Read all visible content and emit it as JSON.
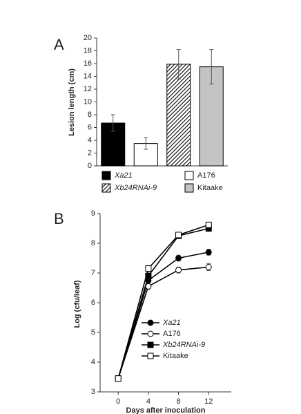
{
  "chart_data": [
    {
      "type": "bar",
      "panel": "A",
      "ylabel": "Lesion length (cm)",
      "categories": [
        "Xa21",
        "A176",
        "Xb24RNAi-9",
        "Kitaake"
      ],
      "values": [
        6.7,
        3.5,
        15.9,
        15.5
      ],
      "errors": [
        1.3,
        0.9,
        2.3,
        2.7
      ],
      "colors": [
        "#000000",
        "#ffffff",
        "#ffffff",
        "#c4c4c4"
      ],
      "hatched": [
        false,
        false,
        true,
        false
      ],
      "italic": [
        true,
        false,
        true,
        false
      ],
      "ylim": [
        0,
        20
      ],
      "yticks": [
        0,
        2,
        4,
        6,
        8,
        10,
        12,
        14,
        16,
        18,
        20
      ]
    },
    {
      "type": "line",
      "panel": "B",
      "xlabel": "Days after inoculation",
      "ylabel": "Log (cfu/leaf)",
      "x": [
        0,
        4,
        8,
        12
      ],
      "series": [
        {
          "name": "Xa21",
          "marker": "circle",
          "filled": true,
          "italic": true,
          "color": "#000000",
          "values": [
            3.45,
            6.75,
            7.5,
            7.7
          ],
          "errors": [
            0.05,
            0.1,
            0.1,
            0.1
          ]
        },
        {
          "name": "A176",
          "marker": "circle",
          "filled": false,
          "italic": false,
          "color": "#000000",
          "values": [
            3.45,
            6.55,
            7.1,
            7.2
          ],
          "errors": [
            0.05,
            0.1,
            0.1,
            0.12
          ]
        },
        {
          "name": "Xb24RNAi-9",
          "marker": "square",
          "filled": true,
          "italic": true,
          "color": "#000000",
          "values": [
            3.45,
            6.9,
            8.25,
            8.5
          ],
          "errors": [
            0.05,
            0.1,
            0.08,
            0.1
          ]
        },
        {
          "name": "Kitaake",
          "marker": "square",
          "filled": false,
          "italic": false,
          "color": "#000000",
          "values": [
            3.45,
            7.15,
            8.28,
            8.62
          ],
          "errors": [
            0.05,
            0.1,
            0.08,
            0.08
          ]
        }
      ],
      "xlim": [
        -2.4,
        15
      ],
      "xticks": [
        0,
        4,
        8,
        12
      ],
      "ylim": [
        3,
        9
      ],
      "yticks": [
        3,
        4,
        5,
        6,
        7,
        8,
        9
      ]
    }
  ]
}
